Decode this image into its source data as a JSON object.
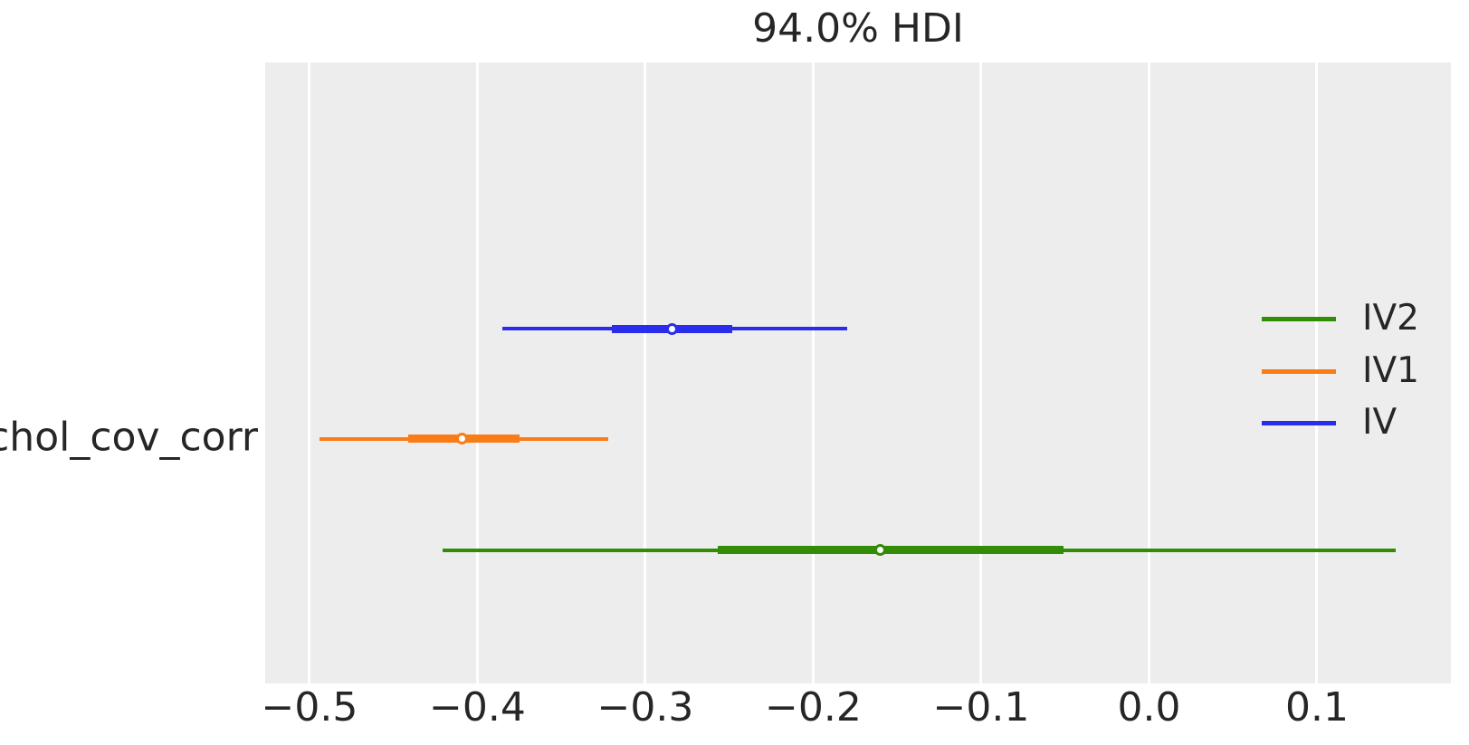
{
  "figure": {
    "background_color": "#ffffff",
    "plot_background_color": "#ededed",
    "gridline_color": "#ffffff",
    "text_color": "#262626"
  },
  "chart_data": {
    "type": "line",
    "chart_subtype": "forest-plot-hdi-intervals",
    "title": "94.0% HDI",
    "hdi_probability": "94.0%",
    "y_tick_label": "chol_cov_corr",
    "xlabel": "",
    "ylabel": "",
    "grid": "vertical-white-on-gray",
    "xlim": [
      -0.5264,
      0.1798
    ],
    "x_ticks": [
      {
        "value": -0.5,
        "label": "−0.5"
      },
      {
        "value": -0.4,
        "label": "−0.4"
      },
      {
        "value": -0.3,
        "label": "−0.3"
      },
      {
        "value": -0.2,
        "label": "−0.2"
      },
      {
        "value": -0.1,
        "label": "−0.1"
      },
      {
        "value": 0.0,
        "label": "0.0"
      },
      {
        "value": 0.1,
        "label": "0.1"
      }
    ],
    "series": [
      {
        "name": "IV",
        "color": "#2a2eec",
        "y_frac": 0.4286,
        "hdi": [
          -0.385,
          -0.18
        ],
        "quartile": [
          -0.32,
          -0.248
        ],
        "median": -0.284
      },
      {
        "name": "IV1",
        "color": "#fa7c17",
        "y_frac": 0.6064,
        "hdi": [
          -0.494,
          -0.322
        ],
        "quartile": [
          -0.441,
          -0.375
        ],
        "median": -0.409
      },
      {
        "name": "IV2",
        "color": "#328c06",
        "y_frac": 0.7857,
        "hdi": [
          -0.421,
          0.147
        ],
        "quartile": [
          -0.257,
          -0.051
        ],
        "median": -0.16
      }
    ],
    "legend": {
      "position": "right-inside",
      "frame": false,
      "entries": [
        {
          "label": "IV2",
          "color": "#328c06"
        },
        {
          "label": "IV1",
          "color": "#fa7c17"
        },
        {
          "label": "IV",
          "color": "#2a2eec"
        }
      ]
    }
  }
}
